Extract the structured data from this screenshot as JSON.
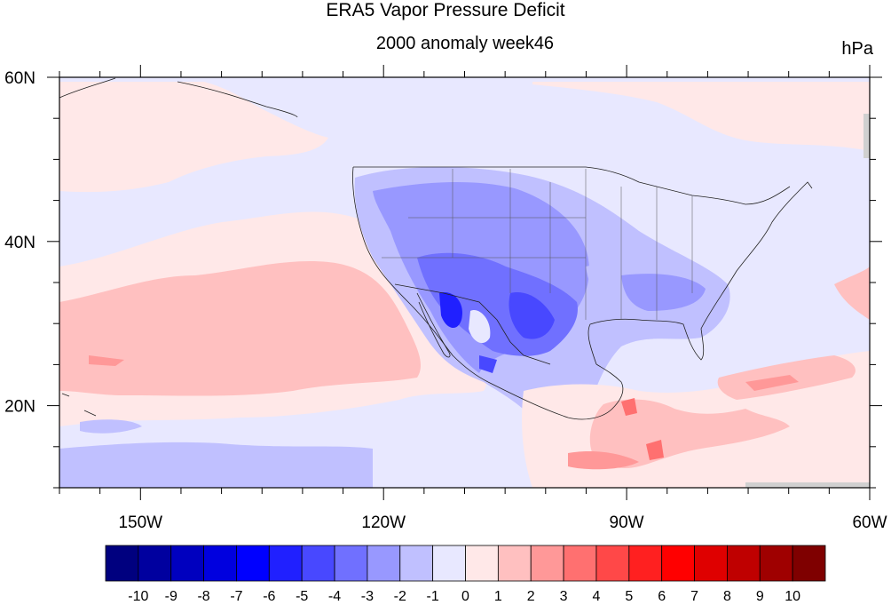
{
  "title": "ERA5 Vapor Pressure Deficit",
  "subtitle": "2000 anomaly week46",
  "units": "hPa",
  "map": {
    "lon_range": [
      -160,
      -60
    ],
    "lat_range": [
      10,
      60
    ],
    "x_ticks": [
      {
        "lon": -150,
        "label": "150W"
      },
      {
        "lon": -120,
        "label": "120W"
      },
      {
        "lon": -90,
        "label": "90W"
      },
      {
        "lon": -60,
        "label": "60W"
      }
    ],
    "y_ticks": [
      {
        "lat": 60,
        "label": "60N"
      },
      {
        "lat": 40,
        "label": "40N"
      },
      {
        "lat": 20,
        "label": "20N"
      }
    ]
  },
  "colorbar": {
    "levels": [
      "-10",
      "-9",
      "-8",
      "-7",
      "-6",
      "-5",
      "-4",
      "-3",
      "-2",
      "-1",
      "0",
      "1",
      "2",
      "3",
      "4",
      "5",
      "6",
      "7",
      "8",
      "9",
      "10"
    ],
    "colors": [
      "#00007f",
      "#00009f",
      "#0000bf",
      "#0000df",
      "#0000ff",
      "#2020ff",
      "#4848ff",
      "#7070ff",
      "#9898ff",
      "#c0c0ff",
      "#e8e8ff",
      "#ffe8e8",
      "#ffc0c0",
      "#ff9898",
      "#ff7070",
      "#ff4848",
      "#ff2020",
      "#ff0000",
      "#df0000",
      "#bf0000",
      "#9f0000",
      "#7f0000"
    ]
  }
}
